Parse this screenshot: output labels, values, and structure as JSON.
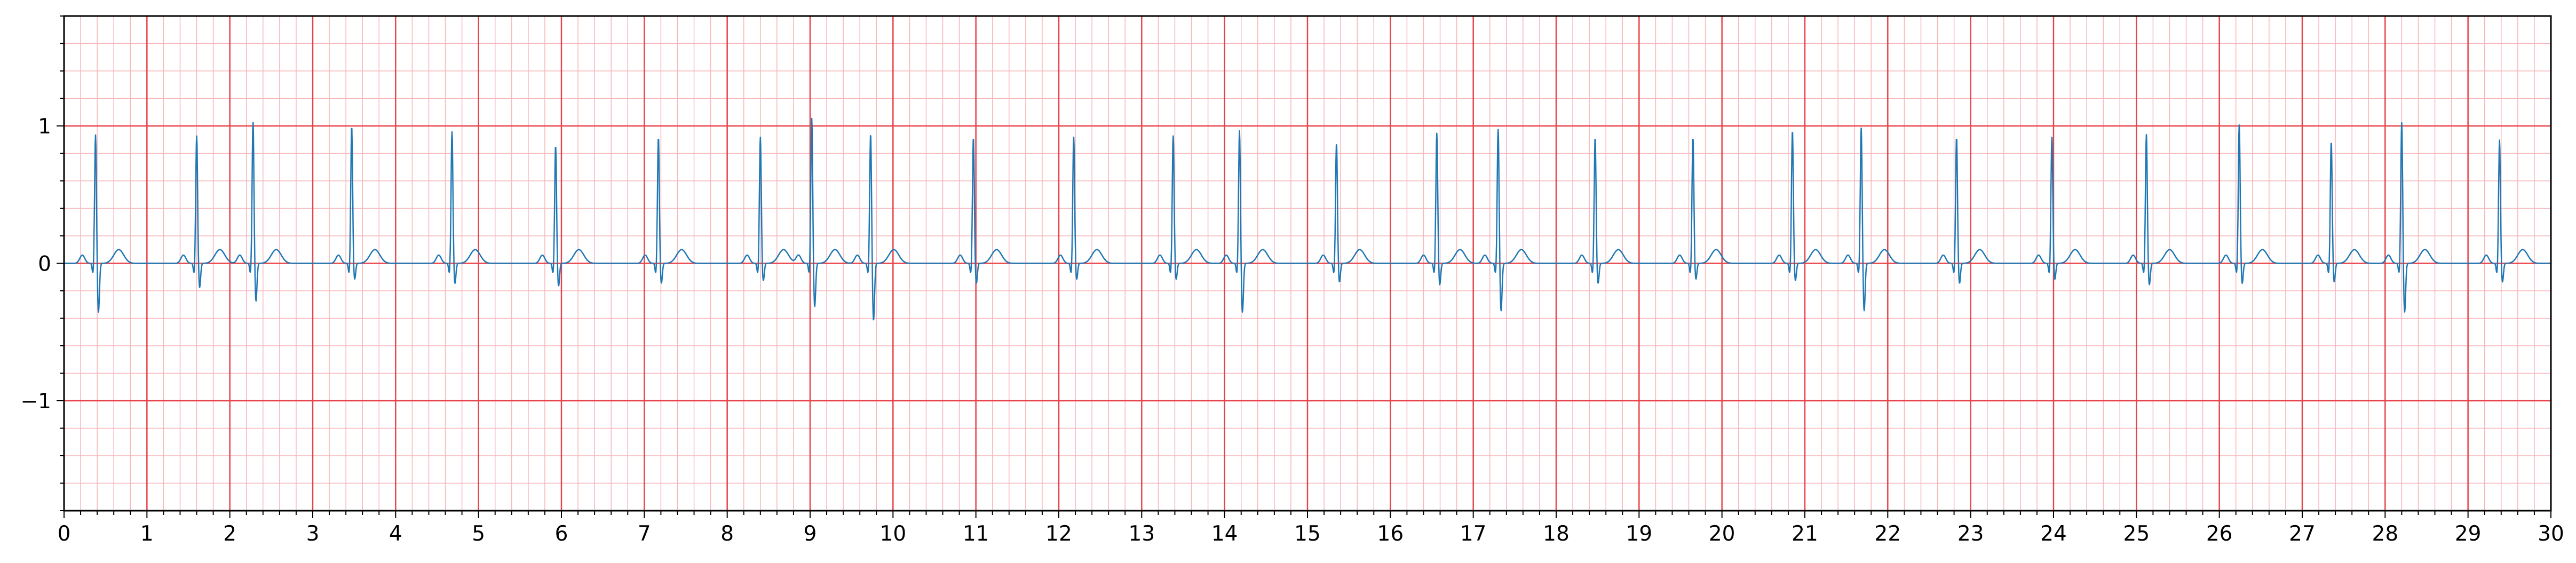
{
  "chart_data": {
    "type": "line",
    "title": "",
    "xlabel": "",
    "ylabel": "",
    "xlim": [
      0,
      30
    ],
    "ylim": [
      -1.8,
      1.8
    ],
    "grid": true,
    "grid_style": "ecg paper: major lines every 1 s and 1 mV, minor lines every 0.2 s and 0.2 mV",
    "x_ticks": [
      "0",
      "1",
      "2",
      "3",
      "4",
      "5",
      "6",
      "7",
      "8",
      "9",
      "10",
      "11",
      "12",
      "13",
      "14",
      "15",
      "16",
      "17",
      "18",
      "19",
      "20",
      "21",
      "22",
      "23",
      "24",
      "25",
      "26",
      "27",
      "28",
      "29",
      "30"
    ],
    "y_ticks": [
      {
        "value": 1,
        "label": "1"
      },
      {
        "value": 0,
        "label": "0"
      },
      {
        "value": -1,
        "label": "−1"
      }
    ],
    "series": [
      {
        "name": "",
        "beats": [
          {
            "t": 0.38,
            "r": 0.94,
            "s": -0.36
          },
          {
            "t": 1.6,
            "r": 0.93,
            "s": -0.18
          },
          {
            "t": 2.28,
            "r": 1.03,
            "s": -0.28
          },
          {
            "t": 3.47,
            "r": 1.0,
            "s": -0.12
          },
          {
            "t": 4.68,
            "r": 0.96,
            "s": -0.15
          },
          {
            "t": 5.93,
            "r": 0.86,
            "s": -0.17
          },
          {
            "t": 7.17,
            "r": 0.92,
            "s": -0.15
          },
          {
            "t": 8.4,
            "r": 0.92,
            "s": -0.13
          },
          {
            "t": 9.02,
            "r": 1.06,
            "s": -0.32
          },
          {
            "t": 9.73,
            "r": 0.95,
            "s": -0.42
          },
          {
            "t": 10.97,
            "r": 0.92,
            "s": -0.15
          },
          {
            "t": 12.18,
            "r": 0.92,
            "s": -0.12
          },
          {
            "t": 13.38,
            "r": 0.93,
            "s": -0.12
          },
          {
            "t": 14.18,
            "r": 0.97,
            "s": -0.36
          },
          {
            "t": 15.35,
            "r": 0.88,
            "s": -0.14
          },
          {
            "t": 16.56,
            "r": 0.95,
            "s": -0.16
          },
          {
            "t": 17.3,
            "r": 0.98,
            "s": -0.35
          },
          {
            "t": 18.47,
            "r": 0.92,
            "s": -0.15
          },
          {
            "t": 19.65,
            "r": 0.92,
            "s": -0.12
          },
          {
            "t": 20.85,
            "r": 0.97,
            "s": -0.13
          },
          {
            "t": 21.68,
            "r": 0.99,
            "s": -0.35
          },
          {
            "t": 22.83,
            "r": 0.92,
            "s": -0.15
          },
          {
            "t": 23.98,
            "r": 0.92,
            "s": -0.12
          },
          {
            "t": 25.12,
            "r": 0.94,
            "s": -0.16
          },
          {
            "t": 26.24,
            "r": 1.01,
            "s": -0.15
          },
          {
            "t": 27.35,
            "r": 0.89,
            "s": -0.14
          },
          {
            "t": 28.2,
            "r": 1.03,
            "s": -0.36
          },
          {
            "t": 29.38,
            "r": 0.9,
            "s": -0.14
          }
        ]
      }
    ]
  },
  "colors": {
    "trace": "#1f77b4",
    "major_grid": "#e8434a",
    "minor_grid": "#f7b6ba",
    "axis": "#000000",
    "background": "#ffffff"
  }
}
